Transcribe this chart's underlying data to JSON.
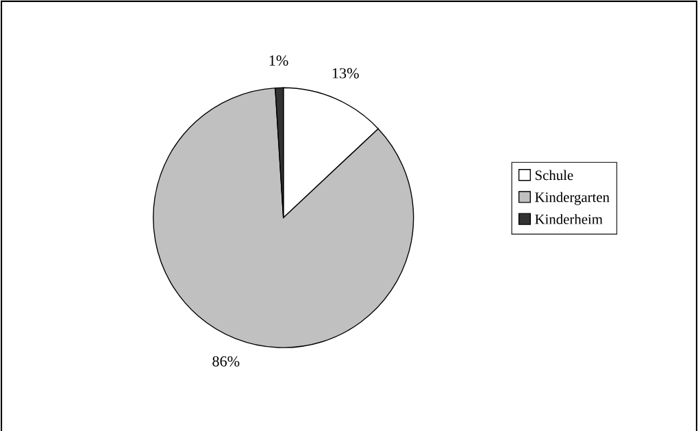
{
  "chart_data": {
    "type": "pie",
    "categories": [
      "Schule",
      "Kindergarten",
      "Kinderheim"
    ],
    "values": [
      13,
      86,
      1
    ],
    "colors": [
      "#ffffff",
      "#c0c0c0",
      "#333333"
    ],
    "value_labels": [
      "13%",
      "86%",
      "1%"
    ],
    "legend": "right"
  }
}
